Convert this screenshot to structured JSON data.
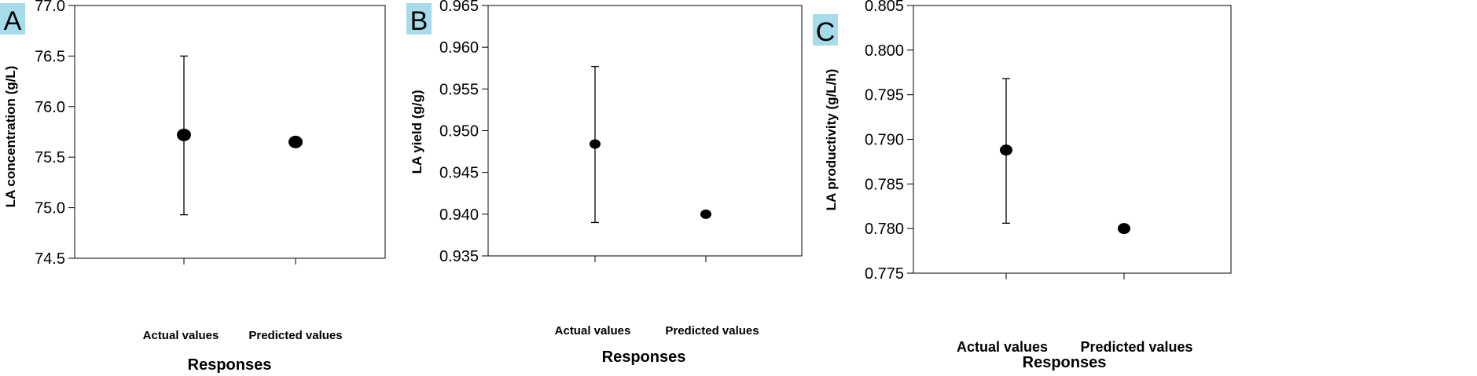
{
  "chart_data": [
    {
      "type": "scatter",
      "panel_label": "A",
      "ylabel": "LA concentration (g/L)",
      "xlabel": "Responses",
      "categories": [
        "Actual values",
        "Predicted values"
      ],
      "values": [
        75.72,
        75.65
      ],
      "error_low": [
        74.93,
        null
      ],
      "error_high": [
        76.5,
        null
      ],
      "ylim": [
        74.5,
        77.0
      ],
      "yticks": [
        "74.5",
        "75.0",
        "75.5",
        "76.0",
        "76.5",
        "77.0"
      ],
      "grid": false
    },
    {
      "type": "scatter",
      "panel_label": "B",
      "ylabel": "LA yield (g/g)",
      "xlabel": "Responses",
      "categories": [
        "Actual values",
        "Predicted values"
      ],
      "values": [
        0.9484,
        0.94
      ],
      "error_low": [
        0.939,
        null
      ],
      "error_high": [
        0.9577,
        null
      ],
      "ylim": [
        0.935,
        0.965
      ],
      "yticks": [
        "0.935",
        "0.940",
        "0.945",
        "0.950",
        "0.955",
        "0.960",
        "0.965"
      ],
      "grid": false
    },
    {
      "type": "scatter",
      "panel_label": "C",
      "ylabel": "LA productivity (g/L/h)",
      "xlabel": "Responses",
      "categories": [
        "Actual values",
        "Predicted values"
      ],
      "values": [
        0.7888,
        0.78
      ],
      "error_low": [
        0.7806,
        null
      ],
      "error_high": [
        0.7968,
        null
      ],
      "ylim": [
        0.775,
        0.805
      ],
      "yticks": [
        "0.775",
        "0.780",
        "0.785",
        "0.790",
        "0.795",
        "0.800",
        "0.805"
      ],
      "grid": false
    }
  ],
  "colors": {
    "panel_label_bg": "#a6dcea",
    "marker": "#000000"
  }
}
